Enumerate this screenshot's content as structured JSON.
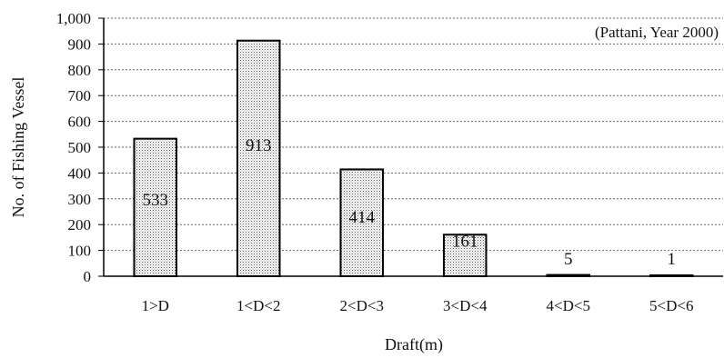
{
  "chart_data": {
    "type": "bar",
    "annotation": "(Pattani, Year 2000)",
    "xlabel": "Draft(m)",
    "ylabel": "No. of Fishing Vessel",
    "categories": [
      "1>D",
      "1<D<2",
      "2<D<3",
      "3<D<4",
      "4<D<5",
      "5<D<6"
    ],
    "values": [
      533,
      913,
      414,
      161,
      5,
      1
    ],
    "data_labels": [
      "533",
      "913",
      "414",
      "161",
      "5",
      "1"
    ],
    "ylim": [
      0,
      1000
    ],
    "yticks": [
      0,
      100,
      200,
      300,
      400,
      500,
      600,
      700,
      800,
      900,
      1000
    ],
    "ytick_labels": [
      "0",
      "100",
      "200",
      "300",
      "400",
      "500",
      "600",
      "700",
      "800",
      "900",
      "1,000"
    ],
    "grid": "horizontal dashed",
    "legend": "none",
    "bar_fill": "#cfcfcf",
    "bar_edge": "#000000"
  }
}
